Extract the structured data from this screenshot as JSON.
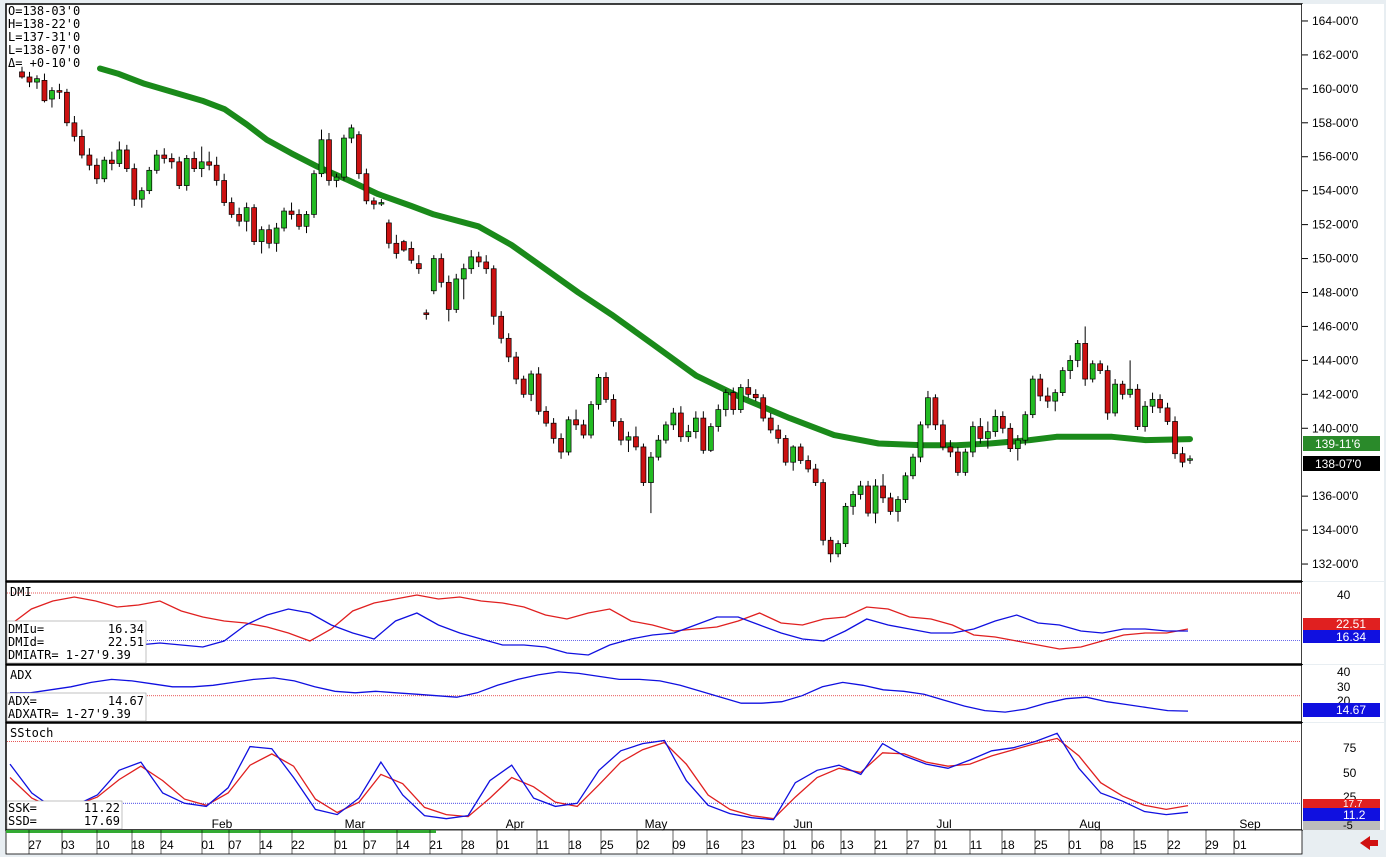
{
  "chart_data": {
    "type": "candlestick",
    "ohlc_box": {
      "lines": [
        "O=138-03'0",
        "H=138-22'0",
        "L=137-31'0",
        "L=138-07'0",
        "Δ=  +0-10'0"
      ]
    },
    "price_axis": {
      "ylim": [
        131,
        165
      ],
      "ticks": [
        "164-00'0",
        "162-00'0",
        "160-00'0",
        "158-00'0",
        "156-00'0",
        "154-00'0",
        "152-00'0",
        "150-00'0",
        "148-00'0",
        "146-00'0",
        "144-00'0",
        "142-00'0",
        "140-00'0",
        "136-00'0",
        "134-00'0",
        "132-00'0"
      ],
      "tick_values": [
        164,
        162,
        160,
        158,
        156,
        154,
        152,
        150,
        148,
        146,
        144,
        142,
        140,
        136,
        134,
        132
      ],
      "ma_label": "139-11'6",
      "ma_value": 139.36,
      "last_label": "138-07'0",
      "last_value": 138.22
    },
    "x_axis": {
      "day_labels": [
        "27",
        "03",
        "10",
        "18",
        "24",
        "01",
        "07",
        "14",
        "22",
        "01",
        "07",
        "14",
        "21",
        "28",
        "01",
        "11",
        "18",
        "25",
        "02",
        "09",
        "16",
        "23",
        "01",
        "06",
        "13",
        "21",
        "27",
        "01",
        "11",
        "18",
        "25",
        "01",
        "08",
        "15",
        "22",
        "29",
        "01"
      ],
      "month_labels": [
        "Feb",
        "Mar",
        "Apr",
        "May",
        "Jun",
        "Jul",
        "Aug",
        "Sep"
      ]
    },
    "candles": [
      [
        161.0,
        161.3,
        160.6,
        160.7
      ],
      [
        160.7,
        161.0,
        160.1,
        160.4
      ],
      [
        160.4,
        160.8,
        160.0,
        160.6
      ],
      [
        160.5,
        160.9,
        159.2,
        159.3
      ],
      [
        159.4,
        160.1,
        158.9,
        159.9
      ],
      [
        159.9,
        160.3,
        159.4,
        159.8
      ],
      [
        159.8,
        160.0,
        157.8,
        158.0
      ],
      [
        158.0,
        158.4,
        156.9,
        157.2
      ],
      [
        157.2,
        157.6,
        155.9,
        156.1
      ],
      [
        156.1,
        156.5,
        155.2,
        155.5
      ],
      [
        155.5,
        155.9,
        154.4,
        154.7
      ],
      [
        154.7,
        156.0,
        154.5,
        155.8
      ],
      [
        155.8,
        156.3,
        155.2,
        155.6
      ],
      [
        155.6,
        156.9,
        155.4,
        156.4
      ],
      [
        156.4,
        156.7,
        155.1,
        155.3
      ],
      [
        155.3,
        155.6,
        153.1,
        153.5
      ],
      [
        153.5,
        154.2,
        153.0,
        154.0
      ],
      [
        154.0,
        155.4,
        153.8,
        155.2
      ],
      [
        155.2,
        156.4,
        155.0,
        156.1
      ],
      [
        156.1,
        156.5,
        155.6,
        155.9
      ],
      [
        155.9,
        156.2,
        155.3,
        155.7
      ],
      [
        155.7,
        156.0,
        154.1,
        154.3
      ],
      [
        154.3,
        156.1,
        154.0,
        155.9
      ],
      [
        155.9,
        156.3,
        155.1,
        155.3
      ],
      [
        155.3,
        156.6,
        154.8,
        155.7
      ],
      [
        155.7,
        156.3,
        155.2,
        155.5
      ],
      [
        155.5,
        156.0,
        154.3,
        154.6
      ],
      [
        154.6,
        155.0,
        153.1,
        153.3
      ],
      [
        153.3,
        153.6,
        152.4,
        152.6
      ],
      [
        152.6,
        153.0,
        151.9,
        152.2
      ],
      [
        152.2,
        153.3,
        151.6,
        153.0
      ],
      [
        153.0,
        153.2,
        150.8,
        151.0
      ],
      [
        151.0,
        151.9,
        150.3,
        151.7
      ],
      [
        151.7,
        152.0,
        150.6,
        150.9
      ],
      [
        150.9,
        152.1,
        150.4,
        151.8
      ],
      [
        151.8,
        153.0,
        151.6,
        152.8
      ],
      [
        152.8,
        153.3,
        152.3,
        152.6
      ],
      [
        152.6,
        152.9,
        151.7,
        151.9
      ],
      [
        151.9,
        152.8,
        151.5,
        152.6
      ],
      [
        152.6,
        155.2,
        152.4,
        155.0
      ],
      [
        155.0,
        157.6,
        154.8,
        157.0
      ],
      [
        157.0,
        157.4,
        154.3,
        154.6
      ],
      [
        154.6,
        155.0,
        154.2,
        154.8
      ],
      [
        154.8,
        157.3,
        154.6,
        157.1
      ],
      [
        157.1,
        157.9,
        156.8,
        157.7
      ],
      [
        157.3,
        157.5,
        154.7,
        155.0
      ],
      [
        155.0,
        155.3,
        153.2,
        153.4
      ],
      [
        153.4,
        153.6,
        152.9,
        153.2
      ],
      [
        153.3,
        153.5,
        153.1,
        153.3
      ],
      [
        152.1,
        152.3,
        150.6,
        150.9
      ],
      [
        150.9,
        151.4,
        150.0,
        150.3
      ],
      [
        151.0,
        151.1,
        150.4,
        150.5
      ],
      [
        150.6,
        151.0,
        149.7,
        149.9
      ],
      [
        149.7,
        150.2,
        149.1,
        149.4
      ],
      [
        146.8,
        147.0,
        146.4,
        146.7
      ],
      [
        148.1,
        150.2,
        147.9,
        150.0
      ],
      [
        150.0,
        150.3,
        148.3,
        148.6
      ],
      [
        148.6,
        149.0,
        146.3,
        147.0
      ],
      [
        147.0,
        149.1,
        146.8,
        148.8
      ],
      [
        148.8,
        149.7,
        147.6,
        149.4
      ],
      [
        149.4,
        150.5,
        149.1,
        150.1
      ],
      [
        150.1,
        150.4,
        149.5,
        149.8
      ],
      [
        149.8,
        150.2,
        149.1,
        149.4
      ],
      [
        149.4,
        149.6,
        146.1,
        146.6
      ],
      [
        146.6,
        146.9,
        145.0,
        145.3
      ],
      [
        145.3,
        145.6,
        143.9,
        144.2
      ],
      [
        144.2,
        144.5,
        142.6,
        142.9
      ],
      [
        142.9,
        143.1,
        141.8,
        142.0
      ],
      [
        142.0,
        143.4,
        141.6,
        143.2
      ],
      [
        143.2,
        143.6,
        140.8,
        141.0
      ],
      [
        141.0,
        141.3,
        140.1,
        140.3
      ],
      [
        140.3,
        140.6,
        139.1,
        139.4
      ],
      [
        139.4,
        139.7,
        138.2,
        138.6
      ],
      [
        138.6,
        140.7,
        138.4,
        140.5
      ],
      [
        140.5,
        141.1,
        139.9,
        140.2
      ],
      [
        140.2,
        140.5,
        139.4,
        139.6
      ],
      [
        139.6,
        141.6,
        139.4,
        141.4
      ],
      [
        141.4,
        143.2,
        141.1,
        143.0
      ],
      [
        143.0,
        143.3,
        141.5,
        141.7
      ],
      [
        141.7,
        142.0,
        140.1,
        140.4
      ],
      [
        140.4,
        140.6,
        139.0,
        139.3
      ],
      [
        139.3,
        139.8,
        138.6,
        139.5
      ],
      [
        139.5,
        140.1,
        138.7,
        138.9
      ],
      [
        138.9,
        139.1,
        136.6,
        136.8
      ],
      [
        136.8,
        138.6,
        135.0,
        138.3
      ],
      [
        138.3,
        139.6,
        138.1,
        139.3
      ],
      [
        139.3,
        140.4,
        139.1,
        140.2
      ],
      [
        140.2,
        141.2,
        139.9,
        140.9
      ],
      [
        140.9,
        141.3,
        139.2,
        139.5
      ],
      [
        139.5,
        140.2,
        139.2,
        139.8
      ],
      [
        139.8,
        141.0,
        139.4,
        140.6
      ],
      [
        140.6,
        141.0,
        138.5,
        138.7
      ],
      [
        138.7,
        140.3,
        138.6,
        140.1
      ],
      [
        140.1,
        141.4,
        139.8,
        141.1
      ],
      [
        141.1,
        142.3,
        140.7,
        142.1
      ],
      [
        142.1,
        142.4,
        140.8,
        141.1
      ],
      [
        141.1,
        142.6,
        140.9,
        142.4
      ],
      [
        142.4,
        142.9,
        141.8,
        142.0
      ],
      [
        142.0,
        142.3,
        141.6,
        141.8
      ],
      [
        141.8,
        142.0,
        140.4,
        140.6
      ],
      [
        140.6,
        140.9,
        139.7,
        139.9
      ],
      [
        139.9,
        140.2,
        139.1,
        139.4
      ],
      [
        139.4,
        139.6,
        137.8,
        138.0
      ],
      [
        138.0,
        139.0,
        137.5,
        138.9
      ],
      [
        138.9,
        139.1,
        137.9,
        138.1
      ],
      [
        138.1,
        138.4,
        137.4,
        137.6
      ],
      [
        137.6,
        137.9,
        136.6,
        136.8
      ],
      [
        136.8,
        137.0,
        133.1,
        133.4
      ],
      [
        133.4,
        133.6,
        132.1,
        132.6
      ],
      [
        132.6,
        133.4,
        132.4,
        133.2
      ],
      [
        133.2,
        135.6,
        133.0,
        135.4
      ],
      [
        135.4,
        136.3,
        134.9,
        136.1
      ],
      [
        136.1,
        136.9,
        135.8,
        136.6
      ],
      [
        136.6,
        136.9,
        134.8,
        135.0
      ],
      [
        135.0,
        137.0,
        134.4,
        136.6
      ],
      [
        136.6,
        137.3,
        135.6,
        135.9
      ],
      [
        135.9,
        136.2,
        134.9,
        135.1
      ],
      [
        135.1,
        136.0,
        134.5,
        135.8
      ],
      [
        135.8,
        137.4,
        135.6,
        137.2
      ],
      [
        137.2,
        138.5,
        137.0,
        138.3
      ],
      [
        138.3,
        140.4,
        138.0,
        140.2
      ],
      [
        140.2,
        142.2,
        140.0,
        141.8
      ],
      [
        141.8,
        142.0,
        139.9,
        140.2
      ],
      [
        140.2,
        140.5,
        138.7,
        138.9
      ],
      [
        138.9,
        139.3,
        138.3,
        138.6
      ],
      [
        138.6,
        138.9,
        137.2,
        137.4
      ],
      [
        137.4,
        138.8,
        137.2,
        138.6
      ],
      [
        138.6,
        140.4,
        138.3,
        140.1
      ],
      [
        140.1,
        140.6,
        139.1,
        139.4
      ],
      [
        139.4,
        140.4,
        138.8,
        139.8
      ],
      [
        139.8,
        141.1,
        139.5,
        140.7
      ],
      [
        140.7,
        141.0,
        139.7,
        140.0
      ],
      [
        140.0,
        140.3,
        138.6,
        138.8
      ],
      [
        138.8,
        139.6,
        138.1,
        139.3
      ],
      [
        139.3,
        141.0,
        139.0,
        140.8
      ],
      [
        140.8,
        143.1,
        140.6,
        142.9
      ],
      [
        142.9,
        143.2,
        141.6,
        141.9
      ],
      [
        141.9,
        142.4,
        141.2,
        141.6
      ],
      [
        141.6,
        142.3,
        141.0,
        142.1
      ],
      [
        142.1,
        143.6,
        141.9,
        143.4
      ],
      [
        143.4,
        144.3,
        142.9,
        144.0
      ],
      [
        144.0,
        145.2,
        143.6,
        145.0
      ],
      [
        145.0,
        146.0,
        142.5,
        142.9
      ],
      [
        142.9,
        144.0,
        142.7,
        143.8
      ],
      [
        143.8,
        144.0,
        143.2,
        143.4
      ],
      [
        143.4,
        143.7,
        140.5,
        140.9
      ],
      [
        140.9,
        142.9,
        140.7,
        142.6
      ],
      [
        142.6,
        142.8,
        141.7,
        142.0
      ],
      [
        142.0,
        144.0,
        141.8,
        142.3
      ],
      [
        142.3,
        142.6,
        139.9,
        140.1
      ],
      [
        140.1,
        141.6,
        139.8,
        141.3
      ],
      [
        141.3,
        142.1,
        140.9,
        141.7
      ],
      [
        141.7,
        142.0,
        140.9,
        141.2
      ],
      [
        141.2,
        141.5,
        140.2,
        140.4
      ],
      [
        140.4,
        140.7,
        138.2,
        138.5
      ],
      [
        138.5,
        138.9,
        137.7,
        138.0
      ],
      [
        138.2,
        138.4,
        137.9,
        138.2
      ]
    ],
    "ma": [
      [
        0,
        161.2
      ],
      [
        8,
        160.9
      ],
      [
        20,
        160.3
      ],
      [
        33,
        159.8
      ],
      [
        46,
        159.3
      ],
      [
        56,
        158.8
      ],
      [
        66,
        157.9
      ],
      [
        75,
        157.0
      ],
      [
        86,
        156.2
      ],
      [
        98,
        155.4
      ],
      [
        112,
        154.6
      ],
      [
        125,
        153.8
      ],
      [
        140,
        153.1
      ],
      [
        150,
        152.6
      ],
      [
        170,
        151.9
      ],
      [
        185,
        150.8
      ],
      [
        200,
        149.4
      ],
      [
        215,
        148.0
      ],
      [
        230,
        146.7
      ],
      [
        248,
        145.0
      ],
      [
        268,
        143.1
      ],
      [
        290,
        141.7
      ],
      [
        310,
        140.6
      ],
      [
        330,
        139.6
      ],
      [
        350,
        139.1
      ],
      [
        370,
        139.0
      ],
      [
        385,
        139.0
      ],
      [
        400,
        139.1
      ],
      [
        418,
        139.3
      ],
      [
        430,
        139.5
      ],
      [
        440,
        139.5
      ],
      [
        455,
        139.5
      ],
      [
        470,
        139.3
      ],
      [
        490,
        139.36
      ]
    ],
    "dmi": {
      "label": "DMI",
      "ticks": [
        "40"
      ],
      "tick_values": [
        40
      ],
      "ylim": [
        5,
        45
      ],
      "readouts": [
        "DMIu=",
        "16.34",
        "DMId=",
        "22.51",
        "DMIATR= 1-27'9.39"
      ],
      "plus_label": "16.34",
      "minus_label": "22.51",
      "plus_value": 16.34,
      "minus_value": 22.51,
      "plus": [
        20,
        18,
        17,
        16,
        15,
        17,
        14,
        15,
        14,
        13,
        16,
        24,
        29,
        32,
        30,
        24,
        20,
        17,
        26,
        30,
        24,
        20,
        17,
        14,
        14,
        13,
        10,
        9,
        14,
        17,
        19,
        20,
        24,
        28,
        28,
        24,
        20,
        17,
        16,
        21,
        27,
        24,
        22,
        20,
        20,
        22,
        26,
        29,
        25,
        24,
        21,
        20,
        22,
        22,
        21,
        21
      ],
      "minus": [
        24,
        32,
        36,
        38,
        36,
        33,
        34,
        36,
        31,
        28,
        26,
        25,
        23,
        20,
        16,
        22,
        31,
        35,
        37,
        39,
        37,
        38,
        36,
        35,
        33,
        29,
        27,
        30,
        32,
        26,
        24,
        21,
        22,
        23,
        26,
        30,
        25,
        24,
        27,
        28,
        33,
        32,
        28,
        27,
        24,
        19,
        18,
        16,
        14,
        12,
        13,
        16,
        19,
        20,
        20,
        22
      ]
    },
    "adx": {
      "label": "ADX",
      "ticks": [
        "40",
        "30",
        "20"
      ],
      "tick_values": [
        40,
        30,
        20
      ],
      "ylim": [
        8,
        45
      ],
      "readouts": [
        "ADX=",
        "14.67",
        "ADXATR= 1-27'9.39"
      ],
      "value_label": "14.67",
      "value": 14.67,
      "line": [
        27,
        27,
        29,
        31,
        34,
        36,
        35,
        33,
        31,
        31,
        32,
        34,
        36,
        37,
        35,
        31,
        28,
        27,
        28,
        27,
        26,
        25,
        24,
        27,
        32,
        36,
        39,
        41,
        40,
        38,
        36,
        36,
        35,
        32,
        28,
        24,
        20,
        20,
        21,
        25,
        31,
        34,
        32,
        29,
        28,
        26,
        22,
        18,
        15,
        14,
        16,
        20,
        23,
        24,
        21,
        19,
        17,
        15,
        14.67
      ]
    },
    "sstoch": {
      "label": "SStoch",
      "ticks": [
        "75",
        "50",
        "25",
        "-5"
      ],
      "tick_values": [
        75,
        50,
        25,
        -5
      ],
      "ylim": [
        -5,
        97
      ],
      "upper_band": 80,
      "lower_band": 20,
      "readouts": [
        "SSK=",
        "11.22",
        "SSD=",
        "17.69"
      ],
      "k_label": "11.2",
      "d_label": "17.7",
      "k_value": 11.22,
      "d_value": 17.69,
      "k": [
        58,
        30,
        15,
        18,
        28,
        52,
        60,
        30,
        20,
        17,
        35,
        75,
        73,
        45,
        14,
        9,
        25,
        60,
        28,
        8,
        5,
        8,
        42,
        57,
        25,
        17,
        20,
        52,
        71,
        78,
        81,
        42,
        18,
        10,
        6,
        4,
        40,
        52,
        57,
        48,
        78,
        66,
        58,
        54,
        62,
        71,
        74,
        80,
        88,
        54,
        30,
        22,
        12,
        9,
        11.22
      ],
      "d": [
        45,
        25,
        15,
        18,
        26,
        43,
        56,
        42,
        24,
        18,
        30,
        57,
        68,
        56,
        24,
        11,
        21,
        48,
        39,
        16,
        9,
        7,
        25,
        45,
        36,
        21,
        17,
        38,
        60,
        72,
        79,
        58,
        28,
        14,
        8,
        5,
        26,
        45,
        54,
        50,
        69,
        68,
        60,
        56,
        58,
        66,
        72,
        78,
        83,
        66,
        40,
        27,
        18,
        14,
        17.69
      ]
    }
  }
}
